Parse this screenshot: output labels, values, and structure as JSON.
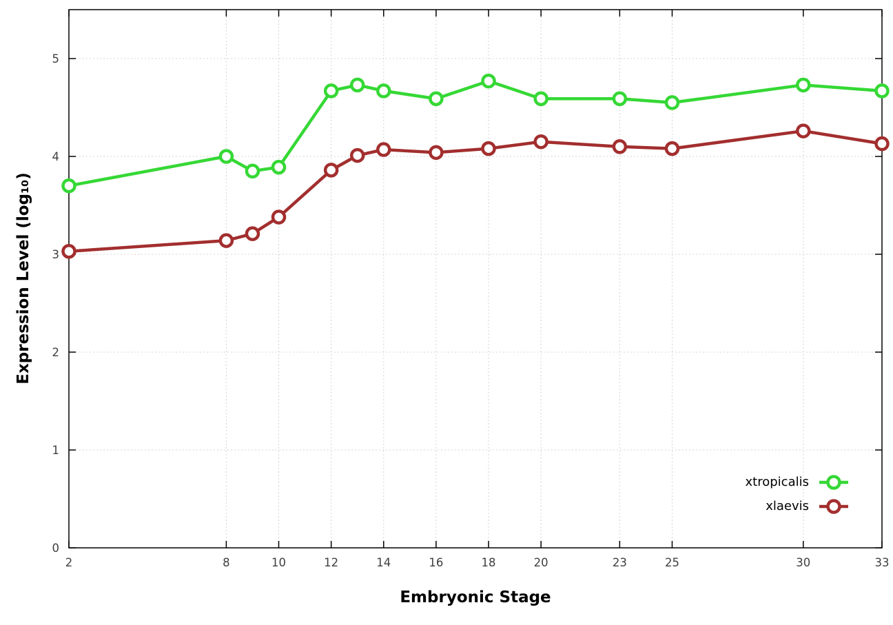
{
  "chart_data": {
    "type": "line",
    "title": "",
    "xlabel": "Embryonic Stage",
    "ylabel": "Expression Level (log₁₀)",
    "xlim": [
      2,
      33
    ],
    "ylim": [
      0,
      5.5
    ],
    "xticks": [
      2,
      8,
      10,
      12,
      14,
      16,
      18,
      20,
      23,
      25,
      30,
      33
    ],
    "yticks": [
      0,
      1,
      2,
      3,
      4,
      5
    ],
    "grid": true,
    "legend_position": "inside-bottom-right",
    "x": [
      2,
      8,
      9,
      10,
      12,
      13,
      14,
      16,
      18,
      20,
      23,
      25,
      30,
      33
    ],
    "series": [
      {
        "name": "xtropicalis",
        "color": "#35d835",
        "values": [
          3.7,
          4.0,
          3.85,
          3.89,
          4.67,
          4.73,
          4.67,
          4.59,
          4.77,
          4.59,
          4.59,
          4.55,
          4.73,
          4.67
        ]
      },
      {
        "name": "xlaevis",
        "color": "#a32e2e",
        "values": [
          3.03,
          3.14,
          3.21,
          3.38,
          3.86,
          4.01,
          4.07,
          4.04,
          4.08,
          4.15,
          4.1,
          4.08,
          4.26,
          4.13
        ]
      }
    ],
    "axis_tick_color": "#404040",
    "grid_color": "#d4d4d4",
    "border_color": "#000000"
  }
}
